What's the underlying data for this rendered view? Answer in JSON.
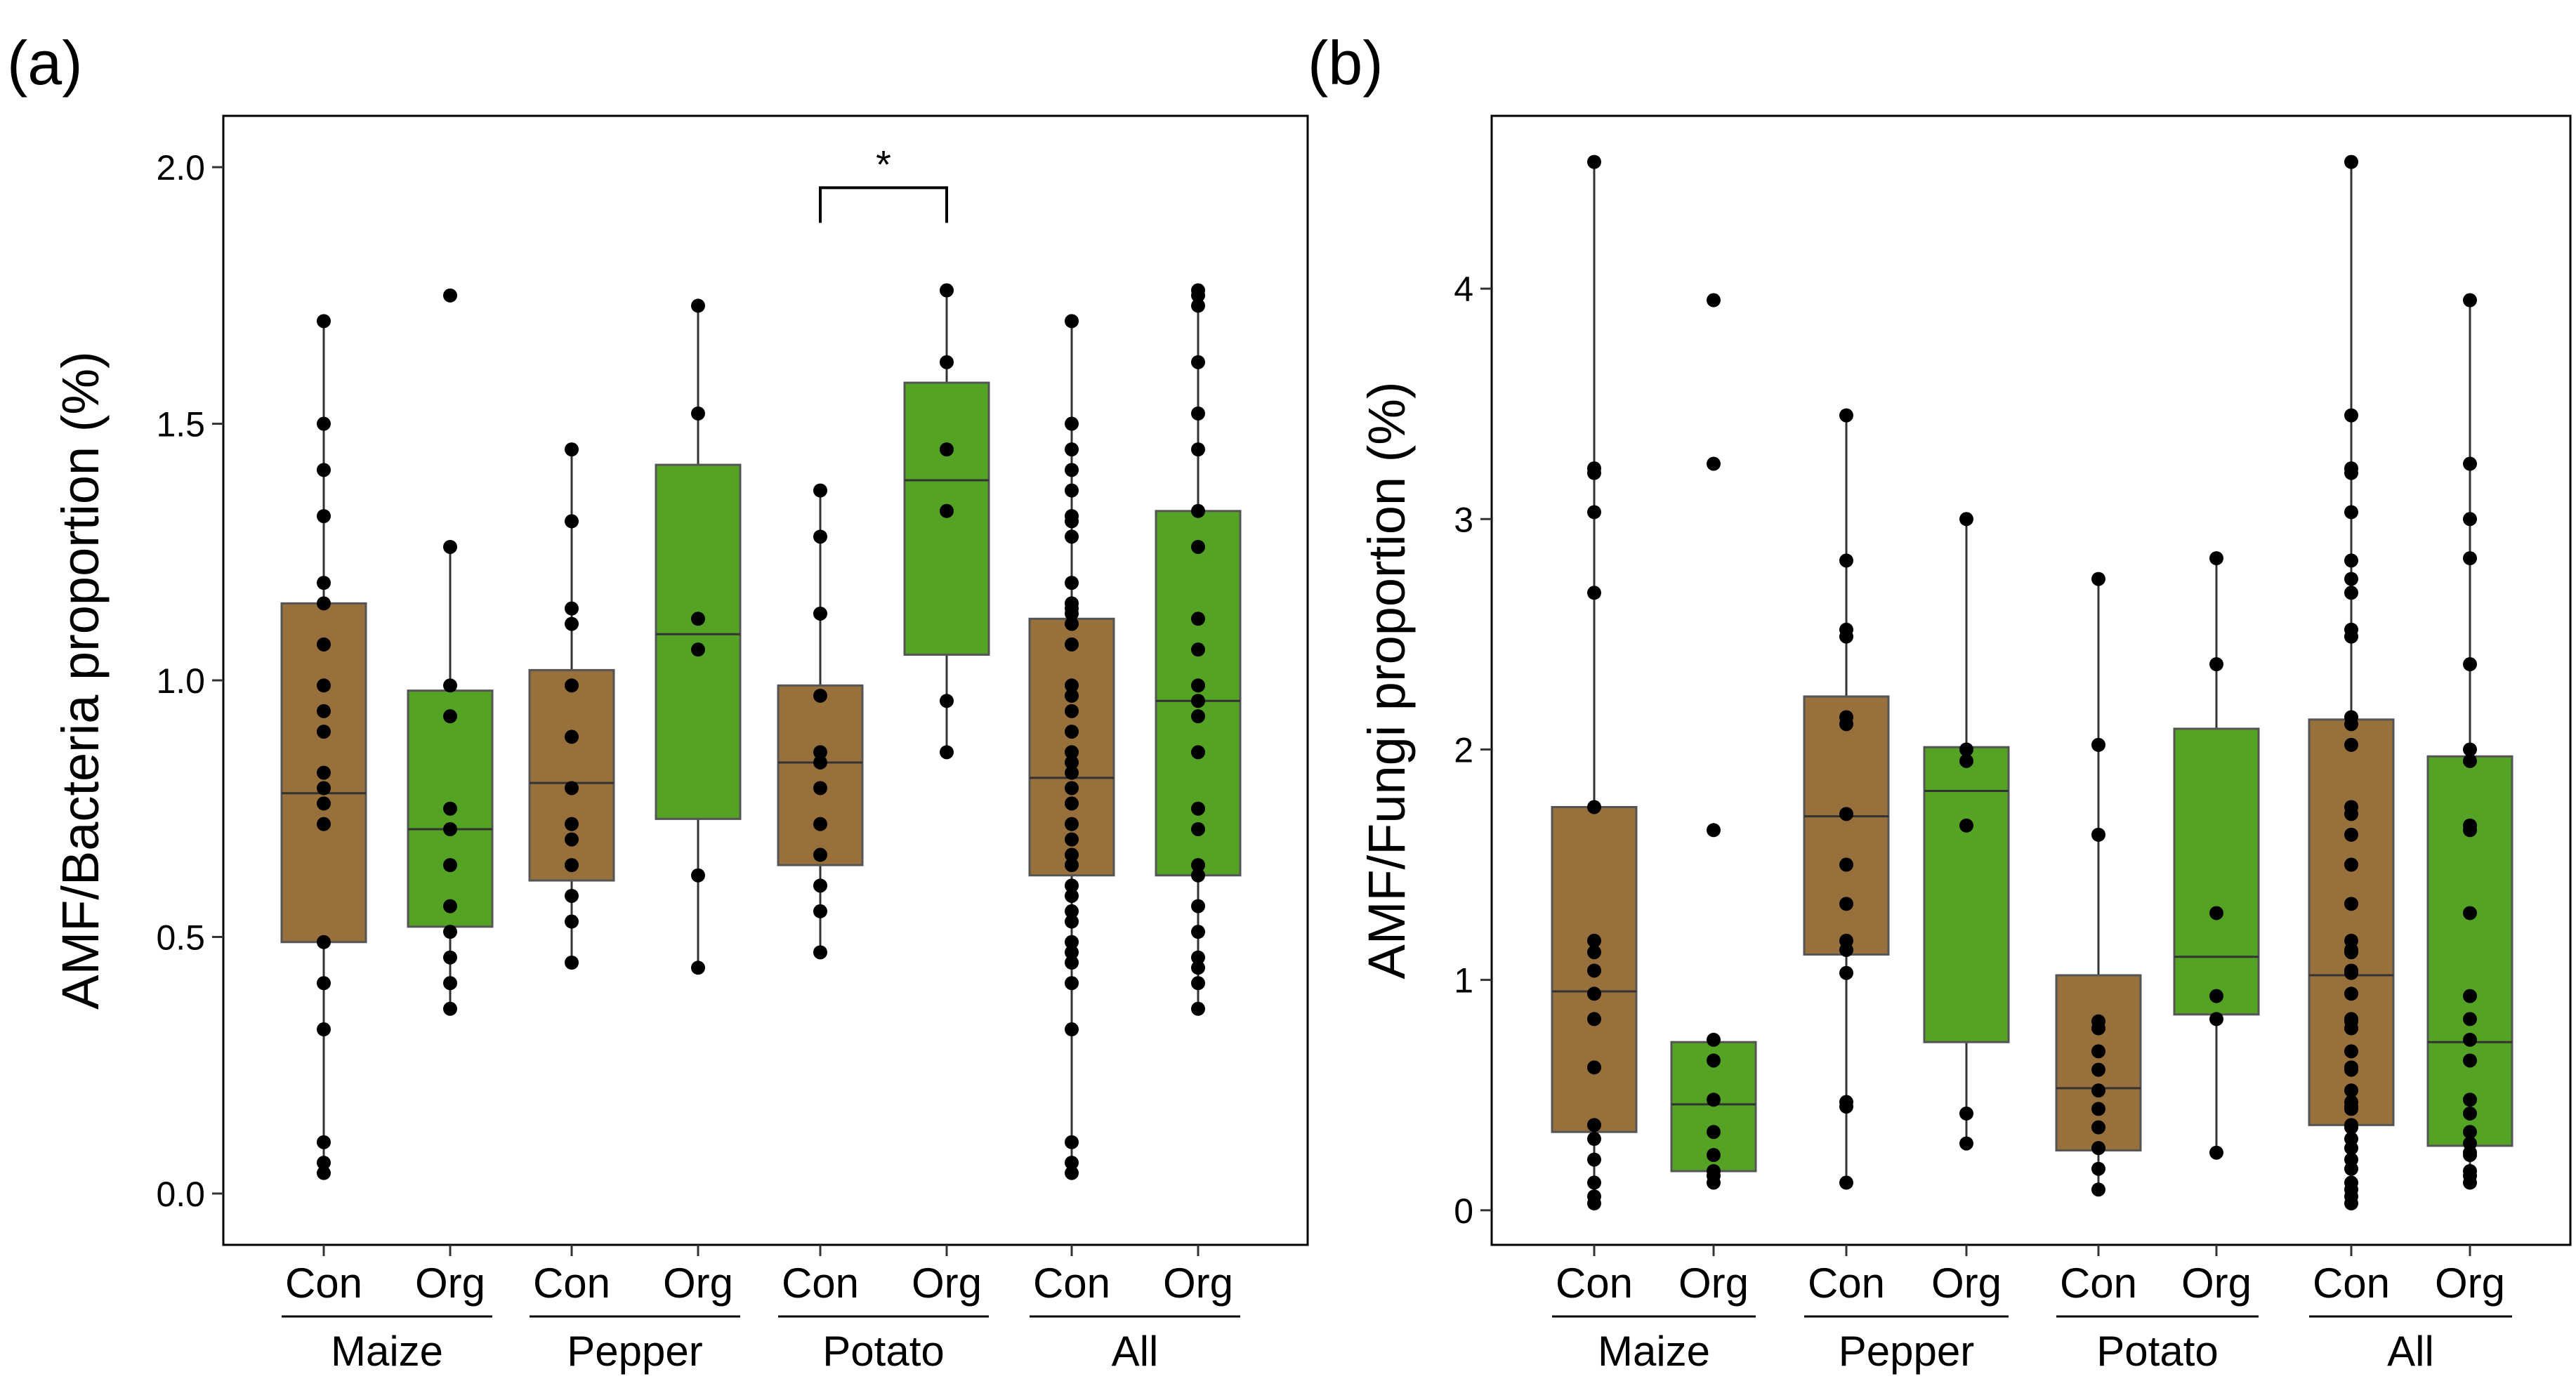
{
  "colors": {
    "con": "#98703B",
    "org": "#54A325",
    "point": "#000000"
  },
  "chart_data": [
    {
      "type": "box",
      "panel_label": "(a)",
      "ylabel": "AMF/Bacteria proportion (%)",
      "ylim": [
        -0.1,
        2.1
      ],
      "yticks": [
        0.0,
        0.5,
        1.0,
        1.5,
        2.0
      ],
      "ytick_labels": [
        "0.0",
        "0.5",
        "1.0",
        "1.5",
        "2.0"
      ],
      "groups": [
        {
          "name": "Maize",
          "treatments": [
            {
              "label": "Con",
              "color": "con",
              "whisker_low": 0.04,
              "q1": 0.49,
              "median": 0.78,
              "q3": 1.15,
              "whisker_high": 1.7,
              "points": [
                1.7,
                1.5,
                1.41,
                1.32,
                1.19,
                1.15,
                1.07,
                0.99,
                0.94,
                0.9,
                0.82,
                0.79,
                0.76,
                0.72,
                0.49,
                0.41,
                0.32,
                0.1,
                0.06,
                0.04
              ]
            },
            {
              "label": "Org",
              "color": "org",
              "whisker_low": 0.36,
              "q1": 0.52,
              "median": 0.71,
              "q3": 0.98,
              "whisker_high": 1.26,
              "points": [
                1.75,
                1.26,
                0.99,
                0.93,
                0.75,
                0.71,
                0.64,
                0.56,
                0.51,
                0.46,
                0.41,
                0.36
              ]
            }
          ]
        },
        {
          "name": "Pepper",
          "treatments": [
            {
              "label": "Con",
              "color": "con",
              "whisker_low": 0.45,
              "q1": 0.61,
              "median": 0.8,
              "q3": 1.02,
              "whisker_high": 1.45,
              "points": [
                1.45,
                1.31,
                1.14,
                1.11,
                0.99,
                0.89,
                0.79,
                0.72,
                0.69,
                0.64,
                0.58,
                0.53,
                0.45
              ]
            },
            {
              "label": "Org",
              "color": "org",
              "whisker_low": 0.44,
              "q1": 0.73,
              "median": 1.09,
              "q3": 1.42,
              "whisker_high": 1.73,
              "points": [
                1.73,
                1.52,
                1.12,
                1.06,
                0.62,
                0.44
              ]
            }
          ]
        },
        {
          "name": "Potato",
          "treatments": [
            {
              "label": "Con",
              "color": "con",
              "whisker_low": 0.47,
              "q1": 0.64,
              "median": 0.84,
              "q3": 0.99,
              "whisker_high": 1.37,
              "points": [
                1.37,
                1.28,
                1.13,
                0.97,
                0.86,
                0.84,
                0.79,
                0.72,
                0.66,
                0.6,
                0.55,
                0.47
              ]
            },
            {
              "label": "Org",
              "color": "org",
              "whisker_low": 0.86,
              "q1": 1.05,
              "median": 1.39,
              "q3": 1.58,
              "whisker_high": 1.76,
              "points": [
                1.76,
                1.62,
                1.45,
                1.33,
                0.96,
                0.86
              ]
            }
          ]
        },
        {
          "name": "All",
          "treatments": [
            {
              "label": "Con",
              "color": "con",
              "whisker_low": 0.04,
              "q1": 0.62,
              "median": 0.81,
              "q3": 1.12,
              "whisker_high": 1.7,
              "points": [
                1.7,
                1.5,
                1.45,
                1.41,
                1.37,
                1.32,
                1.31,
                1.28,
                1.19,
                1.15,
                1.14,
                1.13,
                1.11,
                1.07,
                0.99,
                0.97,
                0.94,
                0.9,
                0.86,
                0.84,
                0.82,
                0.79,
                0.76,
                0.72,
                0.69,
                0.66,
                0.64,
                0.6,
                0.58,
                0.55,
                0.53,
                0.49,
                0.47,
                0.45,
                0.41,
                0.32,
                0.1,
                0.06,
                0.04
              ]
            },
            {
              "label": "Org",
              "color": "org",
              "whisker_low": 0.36,
              "q1": 0.62,
              "median": 0.96,
              "q3": 1.33,
              "whisker_high": 1.76,
              "points": [
                1.76,
                1.75,
                1.73,
                1.62,
                1.52,
                1.45,
                1.33,
                1.26,
                1.12,
                1.06,
                0.99,
                0.96,
                0.93,
                0.86,
                0.75,
                0.71,
                0.64,
                0.62,
                0.56,
                0.51,
                0.46,
                0.44,
                0.41,
                0.36
              ]
            }
          ]
        }
      ],
      "significance": [
        {
          "label": "*",
          "group": 2,
          "y": 1.96
        }
      ]
    },
    {
      "type": "box",
      "panel_label": "(b)",
      "ylabel": "AMF/Fungi proportion (%)",
      "ylim": [
        -0.15,
        4.75
      ],
      "yticks": [
        0,
        1,
        2,
        3,
        4
      ],
      "ytick_labels": [
        "0",
        "1",
        "2",
        "3",
        "4"
      ],
      "groups": [
        {
          "name": "Maize",
          "treatments": [
            {
              "label": "Con",
              "color": "con",
              "whisker_low": 0.03,
              "q1": 0.34,
              "median": 0.95,
              "q3": 1.75,
              "whisker_high": 4.55,
              "points": [
                4.55,
                3.22,
                3.2,
                3.03,
                2.68,
                1.75,
                1.17,
                1.12,
                1.04,
                0.94,
                0.83,
                0.62,
                0.37,
                0.31,
                0.22,
                0.12,
                0.06,
                0.03
              ]
            },
            {
              "label": "Org",
              "color": "org",
              "whisker_low": 0.12,
              "q1": 0.17,
              "median": 0.46,
              "q3": 0.73,
              "whisker_high": 0.73,
              "points": [
                3.95,
                3.24,
                1.65,
                0.74,
                0.65,
                0.48,
                0.34,
                0.24,
                0.17,
                0.15,
                0.12
              ]
            }
          ]
        },
        {
          "name": "Pepper",
          "treatments": [
            {
              "label": "Con",
              "color": "con",
              "whisker_low": 0.12,
              "q1": 1.11,
              "median": 1.71,
              "q3": 2.23,
              "whisker_high": 3.45,
              "points": [
                3.45,
                2.82,
                2.52,
                2.49,
                2.14,
                2.11,
                1.72,
                1.5,
                1.33,
                1.17,
                1.13,
                1.03,
                0.47,
                0.45,
                0.12
              ]
            },
            {
              "label": "Org",
              "color": "org",
              "whisker_low": 0.29,
              "q1": 0.73,
              "median": 1.82,
              "q3": 2.01,
              "whisker_high": 3.0,
              "points": [
                3.0,
                2.0,
                1.95,
                1.67,
                0.42,
                0.29
              ]
            }
          ]
        },
        {
          "name": "Potato",
          "treatments": [
            {
              "label": "Con",
              "color": "con",
              "whisker_low": 0.09,
              "q1": 0.26,
              "median": 0.53,
              "q3": 1.02,
              "whisker_high": 2.74,
              "points": [
                2.74,
                2.02,
                1.63,
                0.82,
                0.79,
                0.69,
                0.61,
                0.52,
                0.44,
                0.36,
                0.27,
                0.18,
                0.09
              ]
            },
            {
              "label": "Org",
              "color": "org",
              "whisker_low": 0.25,
              "q1": 0.85,
              "median": 1.1,
              "q3": 2.09,
              "whisker_high": 2.83,
              "points": [
                2.83,
                2.37,
                1.29,
                0.93,
                0.83,
                0.25
              ]
            }
          ]
        },
        {
          "name": "All",
          "treatments": [
            {
              "label": "Con",
              "color": "con",
              "whisker_low": 0.03,
              "q1": 0.37,
              "median": 1.02,
              "q3": 2.13,
              "whisker_high": 4.55,
              "points": [
                4.55,
                3.45,
                3.22,
                3.2,
                3.03,
                2.82,
                2.74,
                2.68,
                2.52,
                2.49,
                2.14,
                2.11,
                2.02,
                1.75,
                1.72,
                1.63,
                1.5,
                1.33,
                1.17,
                1.13,
                1.12,
                1.04,
                1.03,
                0.94,
                0.83,
                0.82,
                0.79,
                0.69,
                0.62,
                0.61,
                0.52,
                0.47,
                0.45,
                0.44,
                0.37,
                0.36,
                0.31,
                0.27,
                0.22,
                0.18,
                0.12,
                0.09,
                0.06,
                0.03
              ]
            },
            {
              "label": "Org",
              "color": "org",
              "whisker_low": 0.12,
              "q1": 0.28,
              "median": 0.73,
              "q3": 1.97,
              "whisker_high": 3.95,
              "points": [
                3.95,
                3.24,
                3.0,
                2.83,
                2.37,
                2.0,
                1.95,
                1.67,
                1.65,
                1.29,
                0.93,
                0.83,
                0.74,
                0.65,
                0.48,
                0.42,
                0.34,
                0.29,
                0.25,
                0.24,
                0.17,
                0.15,
                0.12
              ]
            }
          ]
        }
      ],
      "significance": []
    }
  ]
}
